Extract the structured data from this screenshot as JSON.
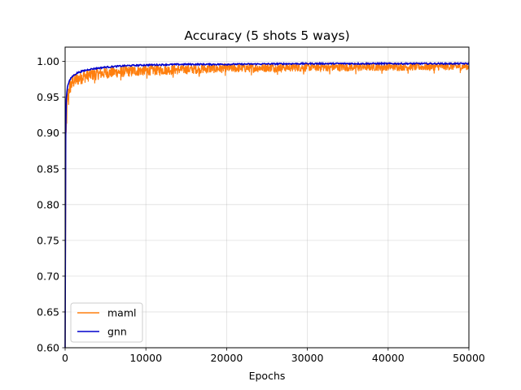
{
  "chart_data": {
    "type": "line",
    "title": "Accuracy (5 shots 5 ways)",
    "xlabel": "Epochs",
    "ylabel": "",
    "xlim": [
      0,
      50000
    ],
    "ylim": [
      0.6,
      1.02
    ],
    "xticks": [
      0,
      10000,
      20000,
      30000,
      40000,
      50000
    ],
    "xtick_labels": [
      "0",
      "10000",
      "20000",
      "30000",
      "40000",
      "50000"
    ],
    "yticks": [
      0.6,
      0.65,
      0.7,
      0.75,
      0.8,
      0.85,
      0.9,
      0.95,
      1.0
    ],
    "ytick_labels": [
      "0.60",
      "0.65",
      "0.70",
      "0.75",
      "0.80",
      "0.85",
      "0.90",
      "0.95",
      "1.00"
    ],
    "grid": true,
    "legend_position": "lower-left",
    "series": [
      {
        "name": "maml",
        "color": "#ff7f0e",
        "style": "noisy-band",
        "x": [
          0,
          100,
          200,
          300,
          500,
          1000,
          2000,
          3000,
          5000,
          7500,
          10000,
          15000,
          20000,
          25000,
          30000,
          35000,
          40000,
          45000,
          50000
        ],
        "upper": [
          0.6,
          0.9,
          0.94,
          0.96,
          0.975,
          0.982,
          0.988,
          0.99,
          0.992,
          0.994,
          0.995,
          0.996,
          0.997,
          0.998,
          0.998,
          0.998,
          0.998,
          0.998,
          0.998
        ],
        "lower": [
          0.6,
          0.86,
          0.91,
          0.93,
          0.95,
          0.962,
          0.968,
          0.972,
          0.976,
          0.978,
          0.98,
          0.982,
          0.984,
          0.985,
          0.986,
          0.986,
          0.987,
          0.987,
          0.988
        ]
      },
      {
        "name": "gnn",
        "color": "#0000cc",
        "style": "line",
        "x": [
          0,
          50,
          100,
          150,
          200,
          300,
          500,
          800,
          1000,
          1500,
          2000,
          3000,
          5000,
          7500,
          10000,
          15000,
          20000,
          30000,
          40000,
          50000
        ],
        "y": [
          0.6,
          0.87,
          0.93,
          0.95,
          0.955,
          0.965,
          0.972,
          0.978,
          0.98,
          0.984,
          0.986,
          0.989,
          0.992,
          0.994,
          0.995,
          0.996,
          0.996,
          0.997,
          0.997,
          0.997
        ]
      }
    ]
  }
}
